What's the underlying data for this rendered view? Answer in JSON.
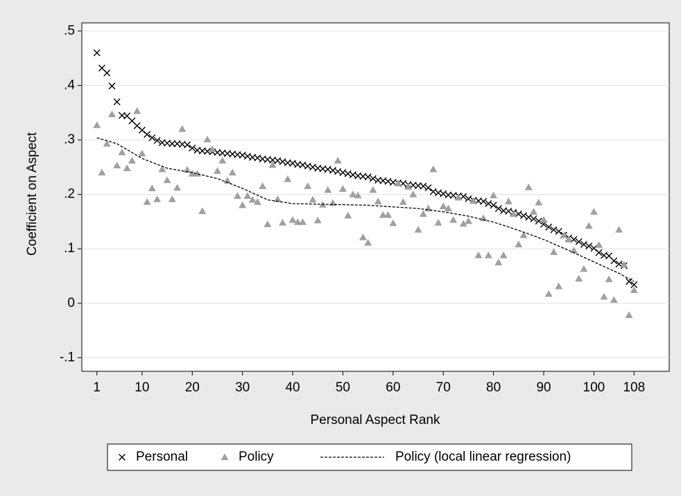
{
  "chart_data": {
    "type": "scatter",
    "xlabel": "Personal Aspect Rank",
    "ylabel": "Coefficient on Aspect",
    "xlim": [
      -2,
      115
    ],
    "ylim": [
      -0.125,
      0.515
    ],
    "xticks": [
      1,
      10,
      20,
      30,
      40,
      50,
      60,
      70,
      80,
      90,
      100,
      108
    ],
    "yticks": [
      {
        "value": -0.1,
        "label": "-.1"
      },
      0,
      {
        "value": 0.1,
        "label": ".1"
      },
      {
        "value": 0.2,
        "label": ".2"
      },
      {
        "value": 0.3,
        "label": ".3"
      },
      {
        "value": 0.4,
        "label": ".4"
      },
      {
        "value": 0.5,
        "label": ".5"
      }
    ],
    "grid": true,
    "legend": "bottom",
    "x": [
      1,
      2,
      3,
      4,
      5,
      6,
      7,
      8,
      9,
      10,
      11,
      12,
      13,
      14,
      15,
      16,
      17,
      18,
      19,
      20,
      21,
      22,
      23,
      24,
      25,
      26,
      27,
      28,
      29,
      30,
      31,
      32,
      33,
      34,
      35,
      36,
      37,
      38,
      39,
      40,
      41,
      42,
      43,
      44,
      45,
      46,
      47,
      48,
      49,
      50,
      51,
      52,
      53,
      54,
      55,
      56,
      57,
      58,
      59,
      60,
      61,
      62,
      63,
      64,
      65,
      66,
      67,
      68,
      69,
      70,
      71,
      72,
      73,
      74,
      75,
      76,
      77,
      78,
      79,
      80,
      81,
      82,
      83,
      84,
      85,
      86,
      87,
      88,
      89,
      90,
      91,
      92,
      93,
      94,
      95,
      96,
      97,
      98,
      99,
      100,
      101,
      102,
      103,
      104,
      105,
      106,
      107,
      108
    ],
    "series": [
      {
        "name": "Personal",
        "color": "#000000",
        "marker": "x",
        "values": [
          0.46,
          0.432,
          0.423,
          0.399,
          0.37,
          0.345,
          0.344,
          0.335,
          0.326,
          0.318,
          0.31,
          0.304,
          0.299,
          0.295,
          0.294,
          0.293,
          0.293,
          0.292,
          0.291,
          0.285,
          0.281,
          0.28,
          0.279,
          0.278,
          0.277,
          0.276,
          0.275,
          0.274,
          0.273,
          0.272,
          0.27,
          0.268,
          0.267,
          0.265,
          0.264,
          0.263,
          0.262,
          0.26,
          0.258,
          0.257,
          0.255,
          0.254,
          0.252,
          0.25,
          0.248,
          0.247,
          0.246,
          0.244,
          0.242,
          0.24,
          0.238,
          0.236,
          0.234,
          0.233,
          0.232,
          0.229,
          0.226,
          0.225,
          0.224,
          0.222,
          0.221,
          0.22,
          0.218,
          0.217,
          0.216,
          0.215,
          0.212,
          0.205,
          0.203,
          0.201,
          0.199,
          0.198,
          0.197,
          0.196,
          0.192,
          0.189,
          0.188,
          0.187,
          0.183,
          0.18,
          0.174,
          0.17,
          0.169,
          0.167,
          0.164,
          0.161,
          0.158,
          0.155,
          0.151,
          0.145,
          0.14,
          0.135,
          0.132,
          0.125,
          0.12,
          0.117,
          0.113,
          0.108,
          0.105,
          0.101,
          0.093,
          0.088,
          0.087,
          0.078,
          0.072,
          0.069,
          0.04,
          0.034
        ]
      },
      {
        "name": "Policy",
        "color": "#a0a0a0",
        "marker": "triangle",
        "values": [
          0.327,
          0.24,
          0.293,
          0.347,
          0.253,
          0.277,
          0.248,
          0.262,
          0.353,
          0.275,
          0.186,
          0.211,
          0.191,
          0.246,
          0.226,
          0.191,
          0.212,
          0.32,
          0.245,
          0.238,
          0.238,
          0.169,
          0.301,
          0.283,
          0.243,
          0.262,
          0.225,
          0.24,
          0.197,
          0.18,
          0.197,
          0.19,
          0.186,
          0.215,
          0.145,
          0.254,
          0.191,
          0.148,
          0.228,
          0.153,
          0.149,
          0.149,
          0.215,
          0.19,
          0.152,
          0.181,
          0.208,
          0.184,
          0.262,
          0.21,
          0.161,
          0.2,
          0.198,
          0.121,
          0.111,
          0.208,
          0.187,
          0.162,
          0.162,
          0.147,
          0.22,
          0.186,
          0.214,
          0.2,
          0.135,
          0.164,
          0.174,
          0.246,
          0.148,
          0.178,
          0.174,
          0.153,
          0.194,
          0.146,
          0.151,
          0.188,
          0.088,
          0.156,
          0.088,
          0.198,
          0.075,
          0.088,
          0.187,
          0.164,
          0.108,
          0.125,
          0.213,
          0.168,
          0.185,
          0.153,
          0.017,
          0.094,
          0.031,
          0.125,
          0.117,
          0.097,
          0.045,
          0.063,
          0.142,
          0.168,
          0.107,
          0.012,
          0.044,
          0.006,
          0.135,
          0.071,
          -0.022,
          0.024
        ]
      },
      {
        "name": "Policy (local linear regression)",
        "color": "#000000",
        "marker": "dashed",
        "x": [
          1,
          5,
          10,
          15,
          20,
          25,
          30,
          35,
          40,
          45,
          50,
          55,
          60,
          65,
          70,
          75,
          80,
          85,
          90,
          95,
          100,
          105,
          108
        ],
        "values": [
          0.304,
          0.293,
          0.266,
          0.248,
          0.24,
          0.229,
          0.211,
          0.19,
          0.183,
          0.182,
          0.181,
          0.18,
          0.177,
          0.174,
          0.168,
          0.16,
          0.149,
          0.134,
          0.117,
          0.097,
          0.076,
          0.055,
          0.04
        ]
      }
    ]
  }
}
